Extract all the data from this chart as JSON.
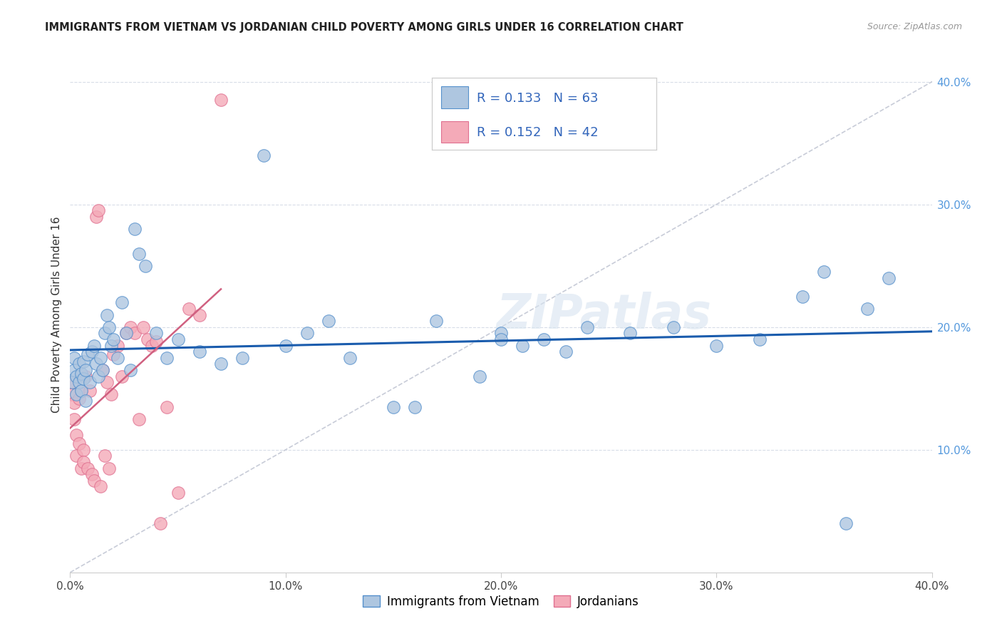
{
  "title": "IMMIGRANTS FROM VIETNAM VS JORDANIAN CHILD POVERTY AMONG GIRLS UNDER 16 CORRELATION CHART",
  "source": "Source: ZipAtlas.com",
  "ylabel": "Child Poverty Among Girls Under 16",
  "xlim": [
    0.0,
    0.4
  ],
  "ylim": [
    0.0,
    0.42
  ],
  "xticks": [
    0.0,
    0.1,
    0.2,
    0.3,
    0.4
  ],
  "yticks": [
    0.1,
    0.2,
    0.3,
    0.4
  ],
  "xtick_labels": [
    "0.0%",
    "10.0%",
    "20.0%",
    "30.0%",
    "40.0%"
  ],
  "ytick_labels": [
    "10.0%",
    "20.0%",
    "30.0%",
    "40.0%"
  ],
  "watermark": "ZIPatlas",
  "legend_r1": "0.133",
  "legend_n1": "63",
  "legend_r2": "0.152",
  "legend_n2": "42",
  "color_vietnam": "#aec6e0",
  "color_jordan": "#f4aab8",
  "edge_vietnam": "#5590cc",
  "edge_jordan": "#e07090",
  "line_color_vietnam": "#1a5cad",
  "line_color_jordan": "#d06080",
  "diag_color": "#c8ccd8",
  "vn_x": [
    0.001,
    0.002,
    0.002,
    0.003,
    0.003,
    0.004,
    0.004,
    0.005,
    0.005,
    0.006,
    0.006,
    0.007,
    0.007,
    0.008,
    0.009,
    0.01,
    0.011,
    0.012,
    0.013,
    0.014,
    0.015,
    0.016,
    0.017,
    0.018,
    0.019,
    0.02,
    0.022,
    0.024,
    0.026,
    0.028,
    0.03,
    0.032,
    0.035,
    0.04,
    0.045,
    0.05,
    0.06,
    0.07,
    0.08,
    0.09,
    0.1,
    0.11,
    0.12,
    0.13,
    0.15,
    0.16,
    0.17,
    0.19,
    0.2,
    0.22,
    0.24,
    0.26,
    0.28,
    0.3,
    0.32,
    0.34,
    0.35,
    0.36,
    0.37,
    0.38,
    0.2,
    0.21,
    0.23
  ],
  "vn_y": [
    0.155,
    0.165,
    0.175,
    0.16,
    0.145,
    0.155,
    0.17,
    0.148,
    0.162,
    0.158,
    0.172,
    0.165,
    0.14,
    0.178,
    0.155,
    0.18,
    0.185,
    0.17,
    0.16,
    0.175,
    0.165,
    0.195,
    0.21,
    0.2,
    0.185,
    0.19,
    0.175,
    0.22,
    0.195,
    0.165,
    0.28,
    0.26,
    0.25,
    0.195,
    0.175,
    0.19,
    0.18,
    0.17,
    0.175,
    0.34,
    0.185,
    0.195,
    0.205,
    0.175,
    0.135,
    0.135,
    0.205,
    0.16,
    0.195,
    0.19,
    0.2,
    0.195,
    0.2,
    0.185,
    0.19,
    0.225,
    0.245,
    0.04,
    0.215,
    0.24,
    0.19,
    0.185,
    0.18
  ],
  "jo_x": [
    0.001,
    0.001,
    0.002,
    0.002,
    0.003,
    0.003,
    0.004,
    0.004,
    0.005,
    0.005,
    0.006,
    0.006,
    0.007,
    0.008,
    0.009,
    0.01,
    0.011,
    0.012,
    0.013,
    0.014,
    0.015,
    0.016,
    0.017,
    0.018,
    0.019,
    0.02,
    0.022,
    0.024,
    0.026,
    0.028,
    0.03,
    0.032,
    0.034,
    0.036,
    0.038,
    0.04,
    0.042,
    0.045,
    0.05,
    0.055,
    0.06,
    0.07
  ],
  "jo_y": [
    0.155,
    0.145,
    0.138,
    0.125,
    0.112,
    0.095,
    0.142,
    0.105,
    0.148,
    0.085,
    0.1,
    0.09,
    0.16,
    0.085,
    0.148,
    0.08,
    0.075,
    0.29,
    0.295,
    0.07,
    0.165,
    0.095,
    0.155,
    0.085,
    0.145,
    0.178,
    0.185,
    0.16,
    0.195,
    0.2,
    0.195,
    0.125,
    0.2,
    0.19,
    0.185,
    0.188,
    0.04,
    0.135,
    0.065,
    0.215,
    0.21,
    0.385
  ]
}
